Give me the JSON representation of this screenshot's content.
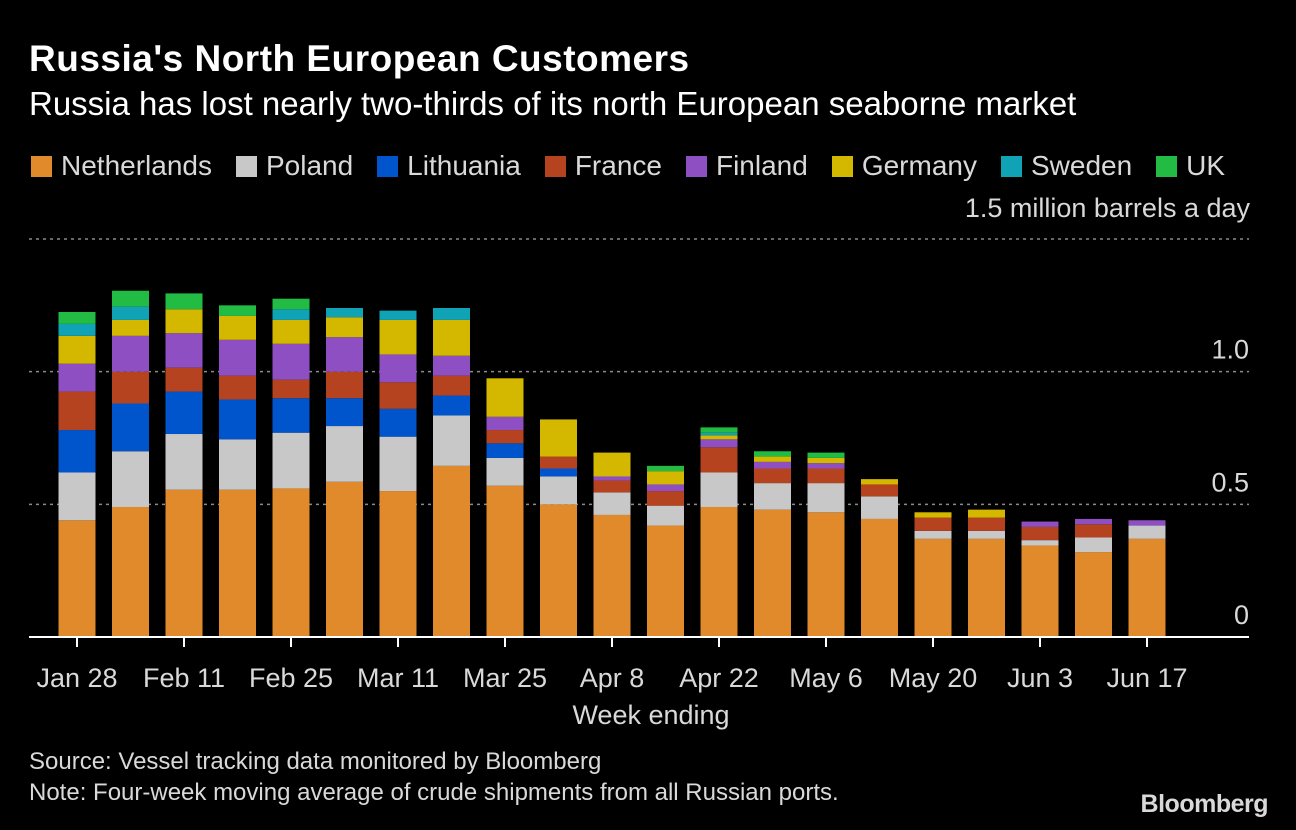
{
  "header": {
    "title": "Russia's North European Customers",
    "subtitle": "Russia has lost nearly two-thirds of its north European seaborne market"
  },
  "footer": {
    "source": "Source: Vessel tracking data monitored by Bloomberg",
    "note": "Note: Four-week moving average of crude shipments from all Russian ports.",
    "brand": "Bloomberg"
  },
  "chart_data": {
    "type": "bar",
    "stacked": true,
    "title": "Russia's North European Customers",
    "subtitle": "Russia has lost nearly two-thirds of its north European seaborne market",
    "unit_label": "1.5 million barrels a day",
    "xlabel": "Week ending",
    "ylabel": "",
    "ylim": [
      0,
      1.5
    ],
    "y_ticks": [
      0,
      0.5,
      1.0,
      1.5
    ],
    "y_tick_labels": [
      "0",
      "0.5",
      "1.0",
      "1.5 million barrels a day"
    ],
    "grid": true,
    "legend_position": "top",
    "x_tick_labels": [
      "Jan 28",
      "Feb 11",
      "Feb 25",
      "Mar 11",
      "Mar 25",
      "Apr 8",
      "Apr 22",
      "May 6",
      "May 20",
      "Jun 3",
      "Jun 17"
    ],
    "series": [
      {
        "name": "Netherlands",
        "color": "#e08a2b",
        "values": [
          0.44,
          0.49,
          0.555,
          0.555,
          0.56,
          0.585,
          0.55,
          0.645,
          0.57,
          0.5,
          0.46,
          0.42,
          0.49,
          0.48,
          0.47,
          0.445,
          0.37,
          0.37,
          0.345,
          0.32,
          0.37
        ]
      },
      {
        "name": "Poland",
        "color": "#c8c8c8",
        "values": [
          0.18,
          0.21,
          0.21,
          0.19,
          0.21,
          0.21,
          0.205,
          0.19,
          0.105,
          0.105,
          0.085,
          0.075,
          0.13,
          0.1,
          0.11,
          0.085,
          0.03,
          0.03,
          0.02,
          0.055,
          0.05
        ]
      },
      {
        "name": "Lithuania",
        "color": "#0055cc",
        "values": [
          0.16,
          0.18,
          0.16,
          0.15,
          0.13,
          0.105,
          0.105,
          0.075,
          0.055,
          0.03,
          0,
          0,
          0,
          0,
          0,
          0,
          0,
          0,
          0,
          0,
          0
        ]
      },
      {
        "name": "France",
        "color": "#b5431f",
        "values": [
          0.145,
          0.12,
          0.09,
          0.09,
          0.07,
          0.1,
          0.1,
          0.075,
          0.05,
          0.045,
          0.045,
          0.055,
          0.095,
          0.055,
          0.055,
          0.045,
          0.05,
          0.05,
          0.05,
          0.05,
          0
        ]
      },
      {
        "name": "Finland",
        "color": "#8e4fc2",
        "values": [
          0.105,
          0.135,
          0.13,
          0.135,
          0.135,
          0.13,
          0.105,
          0.075,
          0.05,
          0,
          0.015,
          0.025,
          0.03,
          0.025,
          0.02,
          0,
          0,
          0,
          0.02,
          0.02,
          0.02
        ]
      },
      {
        "name": "Germany",
        "color": "#d4b800",
        "values": [
          0.105,
          0.06,
          0.09,
          0.09,
          0.09,
          0.075,
          0.13,
          0.135,
          0.145,
          0.14,
          0.09,
          0.05,
          0.015,
          0.02,
          0.02,
          0.02,
          0.02,
          0.03,
          0,
          0,
          0
        ]
      },
      {
        "name": "Sweden",
        "color": "#0fa3b5",
        "values": [
          0.045,
          0.05,
          0,
          0,
          0.04,
          0.035,
          0.035,
          0.045,
          0,
          0,
          0,
          0,
          0.01,
          0,
          0,
          0,
          0,
          0,
          0,
          0,
          0
        ]
      },
      {
        "name": "UK",
        "color": "#22bb44",
        "values": [
          0.045,
          0.06,
          0.06,
          0.04,
          0.04,
          0,
          0,
          0,
          0,
          0,
          0,
          0.02,
          0.02,
          0.02,
          0.02,
          0,
          0,
          0,
          0,
          0,
          0
        ]
      }
    ]
  }
}
